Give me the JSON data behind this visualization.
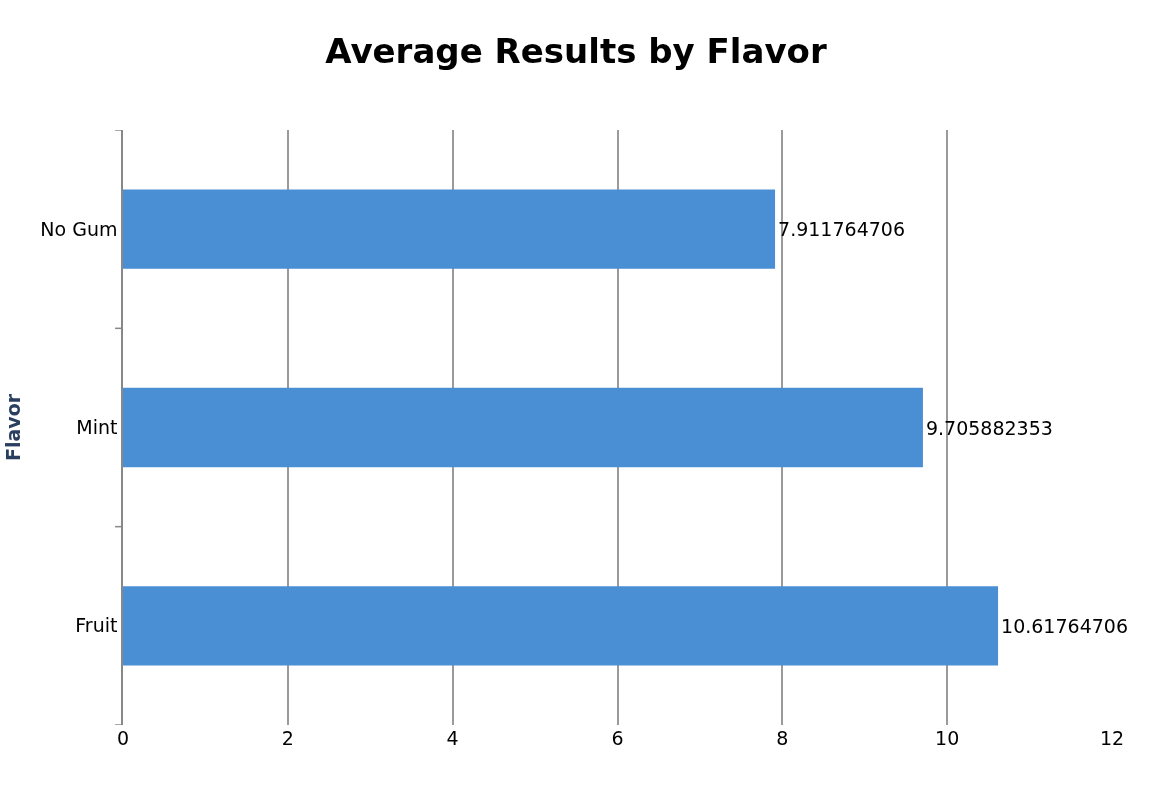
{
  "chart_data": {
    "type": "bar",
    "title": "Average Results by Flavor",
    "ylabel": "Flavor",
    "orientation": "horizontal",
    "categories": [
      "No Gum",
      "Mint",
      "Fruit"
    ],
    "values": [
      7.911764706,
      9.705882353,
      10.61764706
    ],
    "color": "#4a8fd4",
    "data_labels": true,
    "xlim": [
      0,
      12
    ],
    "xticks": [
      0,
      2,
      4,
      6,
      8,
      10,
      12
    ],
    "grid": "x",
    "legend": false
  }
}
